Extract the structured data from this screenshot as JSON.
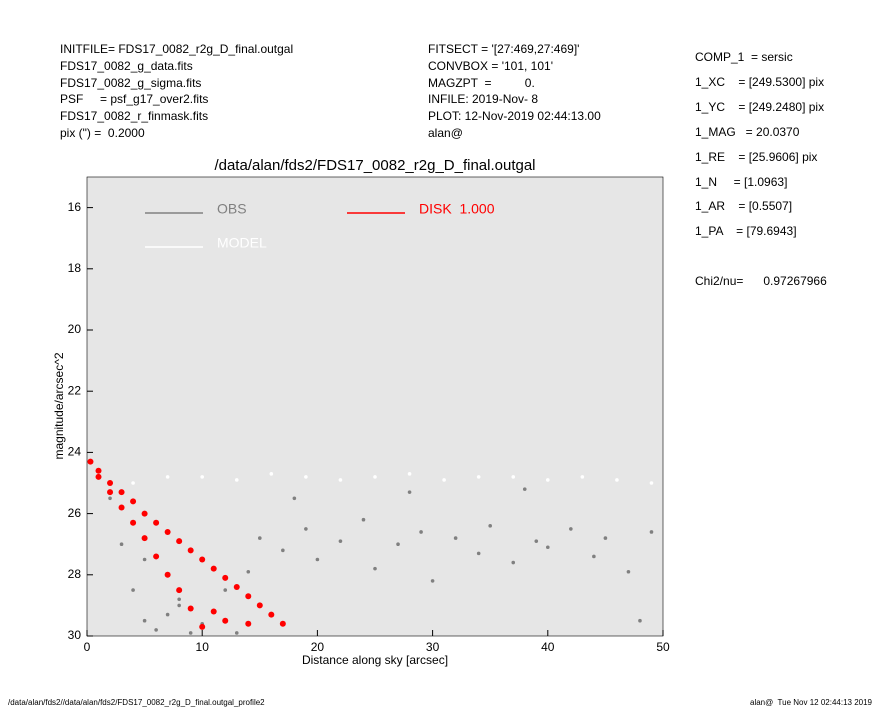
{
  "header": {
    "left": [
      "INITFILE= FDS17_0082_r2g_D_final.outgal",
      "FDS17_0082_g_data.fits",
      "FDS17_0082_g_sigma.fits",
      "PSF     = psf_g17_over2.fits",
      "FDS17_0082_r_finmask.fits",
      "pix (\") =  0.2000"
    ],
    "middle": [
      "FITSECT = '[27:469,27:469]'",
      "CONVBOX = '101, 101'",
      "MAGZPT  =          0.",
      "INFILE: 2019-Nov- 8",
      "PLOT: 12-Nov-2019 02:44:13.00",
      "alan@"
    ],
    "right": [
      "COMP_1  = sersic",
      "1_XC    = [249.5300] pix",
      "1_YC    = [249.2480] pix",
      "1_MAG   = 20.0370",
      "1_RE    = [25.9606] pix",
      "1_N     = [1.0963]",
      "1_AR    = [0.5507]",
      "1_PA    = [79.6943]"
    ],
    "chi2": "Chi2/nu=      0.97267966"
  },
  "footer": {
    "left": "/data/alan/fds2//data/alan/fds2/FDS17_0082_r2g_D_final.outgal_profile2",
    "right": "alan@  Tue Nov 12 02:44:13 2019"
  },
  "chart_data": {
    "type": "scatter",
    "title": "/data/alan/fds2/FDS17_0082_r2g_D_final.outgal",
    "x_label": "Distance along sky [arcsec]",
    "y_label": "magnitude/arcsec^2",
    "xlim": [
      0,
      50
    ],
    "ylim": [
      15,
      30
    ],
    "y_inverted": true,
    "xticks": [
      0,
      10,
      20,
      30,
      40,
      50
    ],
    "yticks": [
      16,
      18,
      20,
      22,
      24,
      26,
      28,
      30
    ],
    "background": "#e6e6e6",
    "series": [
      {
        "name": "OBS",
        "color": "#808080",
        "x": [
          1,
          2,
          3,
          4,
          5,
          6,
          7,
          8,
          9,
          10,
          12,
          14,
          15,
          17,
          19,
          20,
          22,
          24,
          25,
          27,
          29,
          30,
          32,
          34,
          35,
          37,
          39,
          40,
          42,
          44,
          45,
          47,
          49,
          3,
          5,
          8,
          13,
          18,
          28,
          38,
          48
        ],
        "values": [
          24.8,
          25.5,
          27,
          28.5,
          29.5,
          29.8,
          29.3,
          28.8,
          29.9,
          29.6,
          28.5,
          27.9,
          26.8,
          27.2,
          26.5,
          27.5,
          26.9,
          26.2,
          27.8,
          27.0,
          26.6,
          28.2,
          26.8,
          27.3,
          26.4,
          27.6,
          26.9,
          27.1,
          26.5,
          27.4,
          26.8,
          27.9,
          26.6,
          25.8,
          27.5,
          29,
          29.9,
          25.5,
          25.3,
          25.2,
          29.5
        ]
      },
      {
        "name": "MODEL",
        "color": "#ffffff",
        "x": [
          4,
          7,
          10,
          13,
          16,
          19,
          22,
          25,
          28,
          31,
          34,
          37,
          40,
          43,
          46,
          49
        ],
        "values": [
          25.0,
          24.8,
          24.8,
          24.9,
          24.7,
          24.8,
          24.9,
          24.8,
          24.7,
          24.9,
          24.8,
          24.8,
          24.9,
          24.8,
          24.9,
          25.0
        ]
      },
      {
        "name": "DISK  1.000",
        "color": "#ff0000",
        "x": [
          0.3,
          1,
          1,
          2,
          2,
          3,
          3,
          4,
          4,
          5,
          5,
          6,
          6,
          7,
          7,
          8,
          8,
          9,
          9,
          10,
          10,
          11,
          11,
          12,
          12,
          13,
          14,
          14,
          15,
          16,
          17
        ],
        "values": [
          24.3,
          24.6,
          24.8,
          25.0,
          25.3,
          25.3,
          25.8,
          25.6,
          26.3,
          26.0,
          26.8,
          26.3,
          27.4,
          26.6,
          28.0,
          26.9,
          28.5,
          27.2,
          29.1,
          27.5,
          29.7,
          27.8,
          29.2,
          28.1,
          29.5,
          28.4,
          28.7,
          29.6,
          29.0,
          29.3,
          29.6
        ]
      }
    ]
  }
}
